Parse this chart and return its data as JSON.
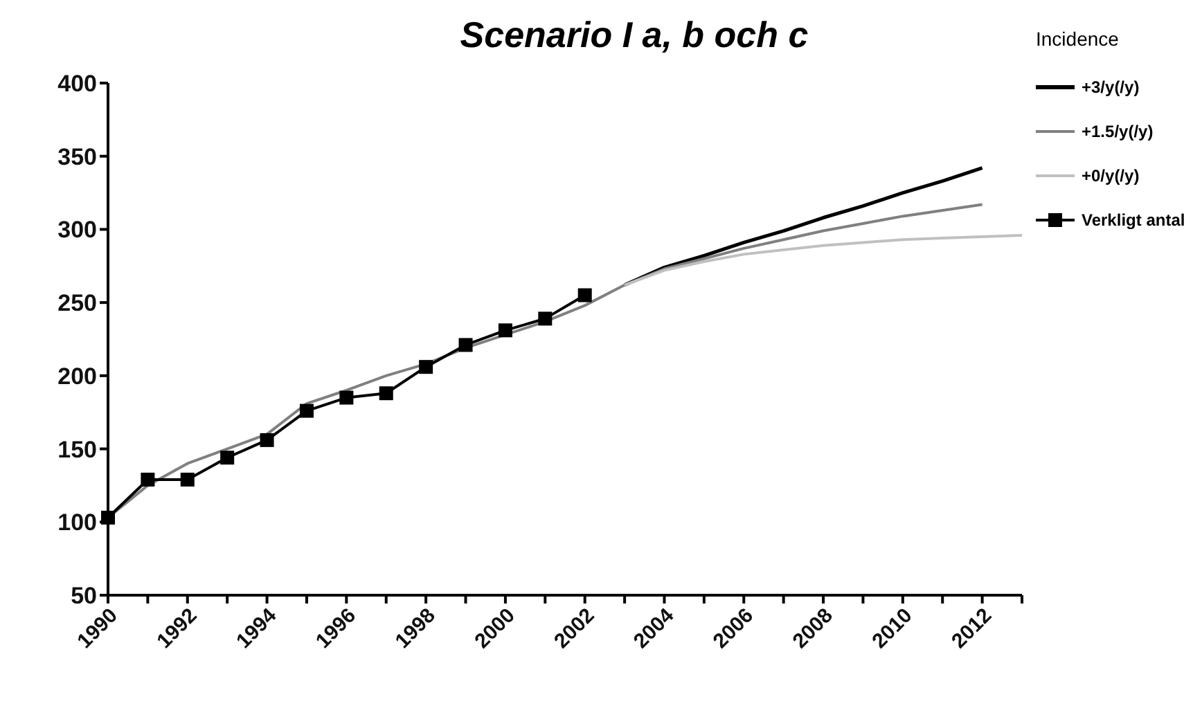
{
  "chart_data": {
    "type": "line",
    "title": "Scenario I a, b och c",
    "legend_title": "Incidence",
    "legend": "right",
    "grid": false,
    "categories": [
      "1990",
      null,
      "1992",
      null,
      "1994",
      null,
      "1996",
      null,
      "1998",
      null,
      "2000",
      null,
      "2002",
      null,
      "2004",
      null,
      "2006",
      null,
      "2008",
      null,
      "2010",
      null,
      "2012",
      null
    ],
    "ylim": [
      50,
      400
    ],
    "yticks": [
      50,
      100,
      150,
      200,
      250,
      300,
      350,
      400
    ],
    "series": [
      {
        "name": "+3/y(/y)",
        "color": "#000000",
        "marker": "none",
        "values": [
          null,
          null,
          null,
          null,
          null,
          null,
          null,
          null,
          null,
          null,
          null,
          null,
          null,
          262,
          274,
          282,
          291,
          299,
          308,
          316,
          325,
          333,
          342,
          null
        ]
      },
      {
        "name": "+1.5/y(/y)",
        "color": "#808080",
        "marker": "none",
        "values": [
          103,
          125,
          140,
          150,
          160,
          181,
          190,
          200,
          208,
          219,
          228,
          237,
          248,
          262,
          273,
          280,
          287,
          293,
          299,
          304,
          309,
          313,
          317,
          null
        ]
      },
      {
        "name": "+0/y(/y)",
        "color": "#c0c0c0",
        "marker": "none",
        "values": [
          null,
          null,
          null,
          null,
          null,
          null,
          null,
          null,
          null,
          null,
          null,
          null,
          null,
          262,
          272,
          278,
          283,
          286,
          289,
          291,
          293,
          294,
          295,
          296
        ]
      },
      {
        "name": "Verkligt antal",
        "color": "#000000",
        "marker": "square",
        "values": [
          103,
          129,
          129,
          144,
          156,
          176,
          185,
          188,
          206,
          221,
          231,
          239,
          255,
          null,
          null,
          null,
          null,
          null,
          null,
          null,
          null,
          null,
          null,
          null
        ]
      }
    ]
  }
}
